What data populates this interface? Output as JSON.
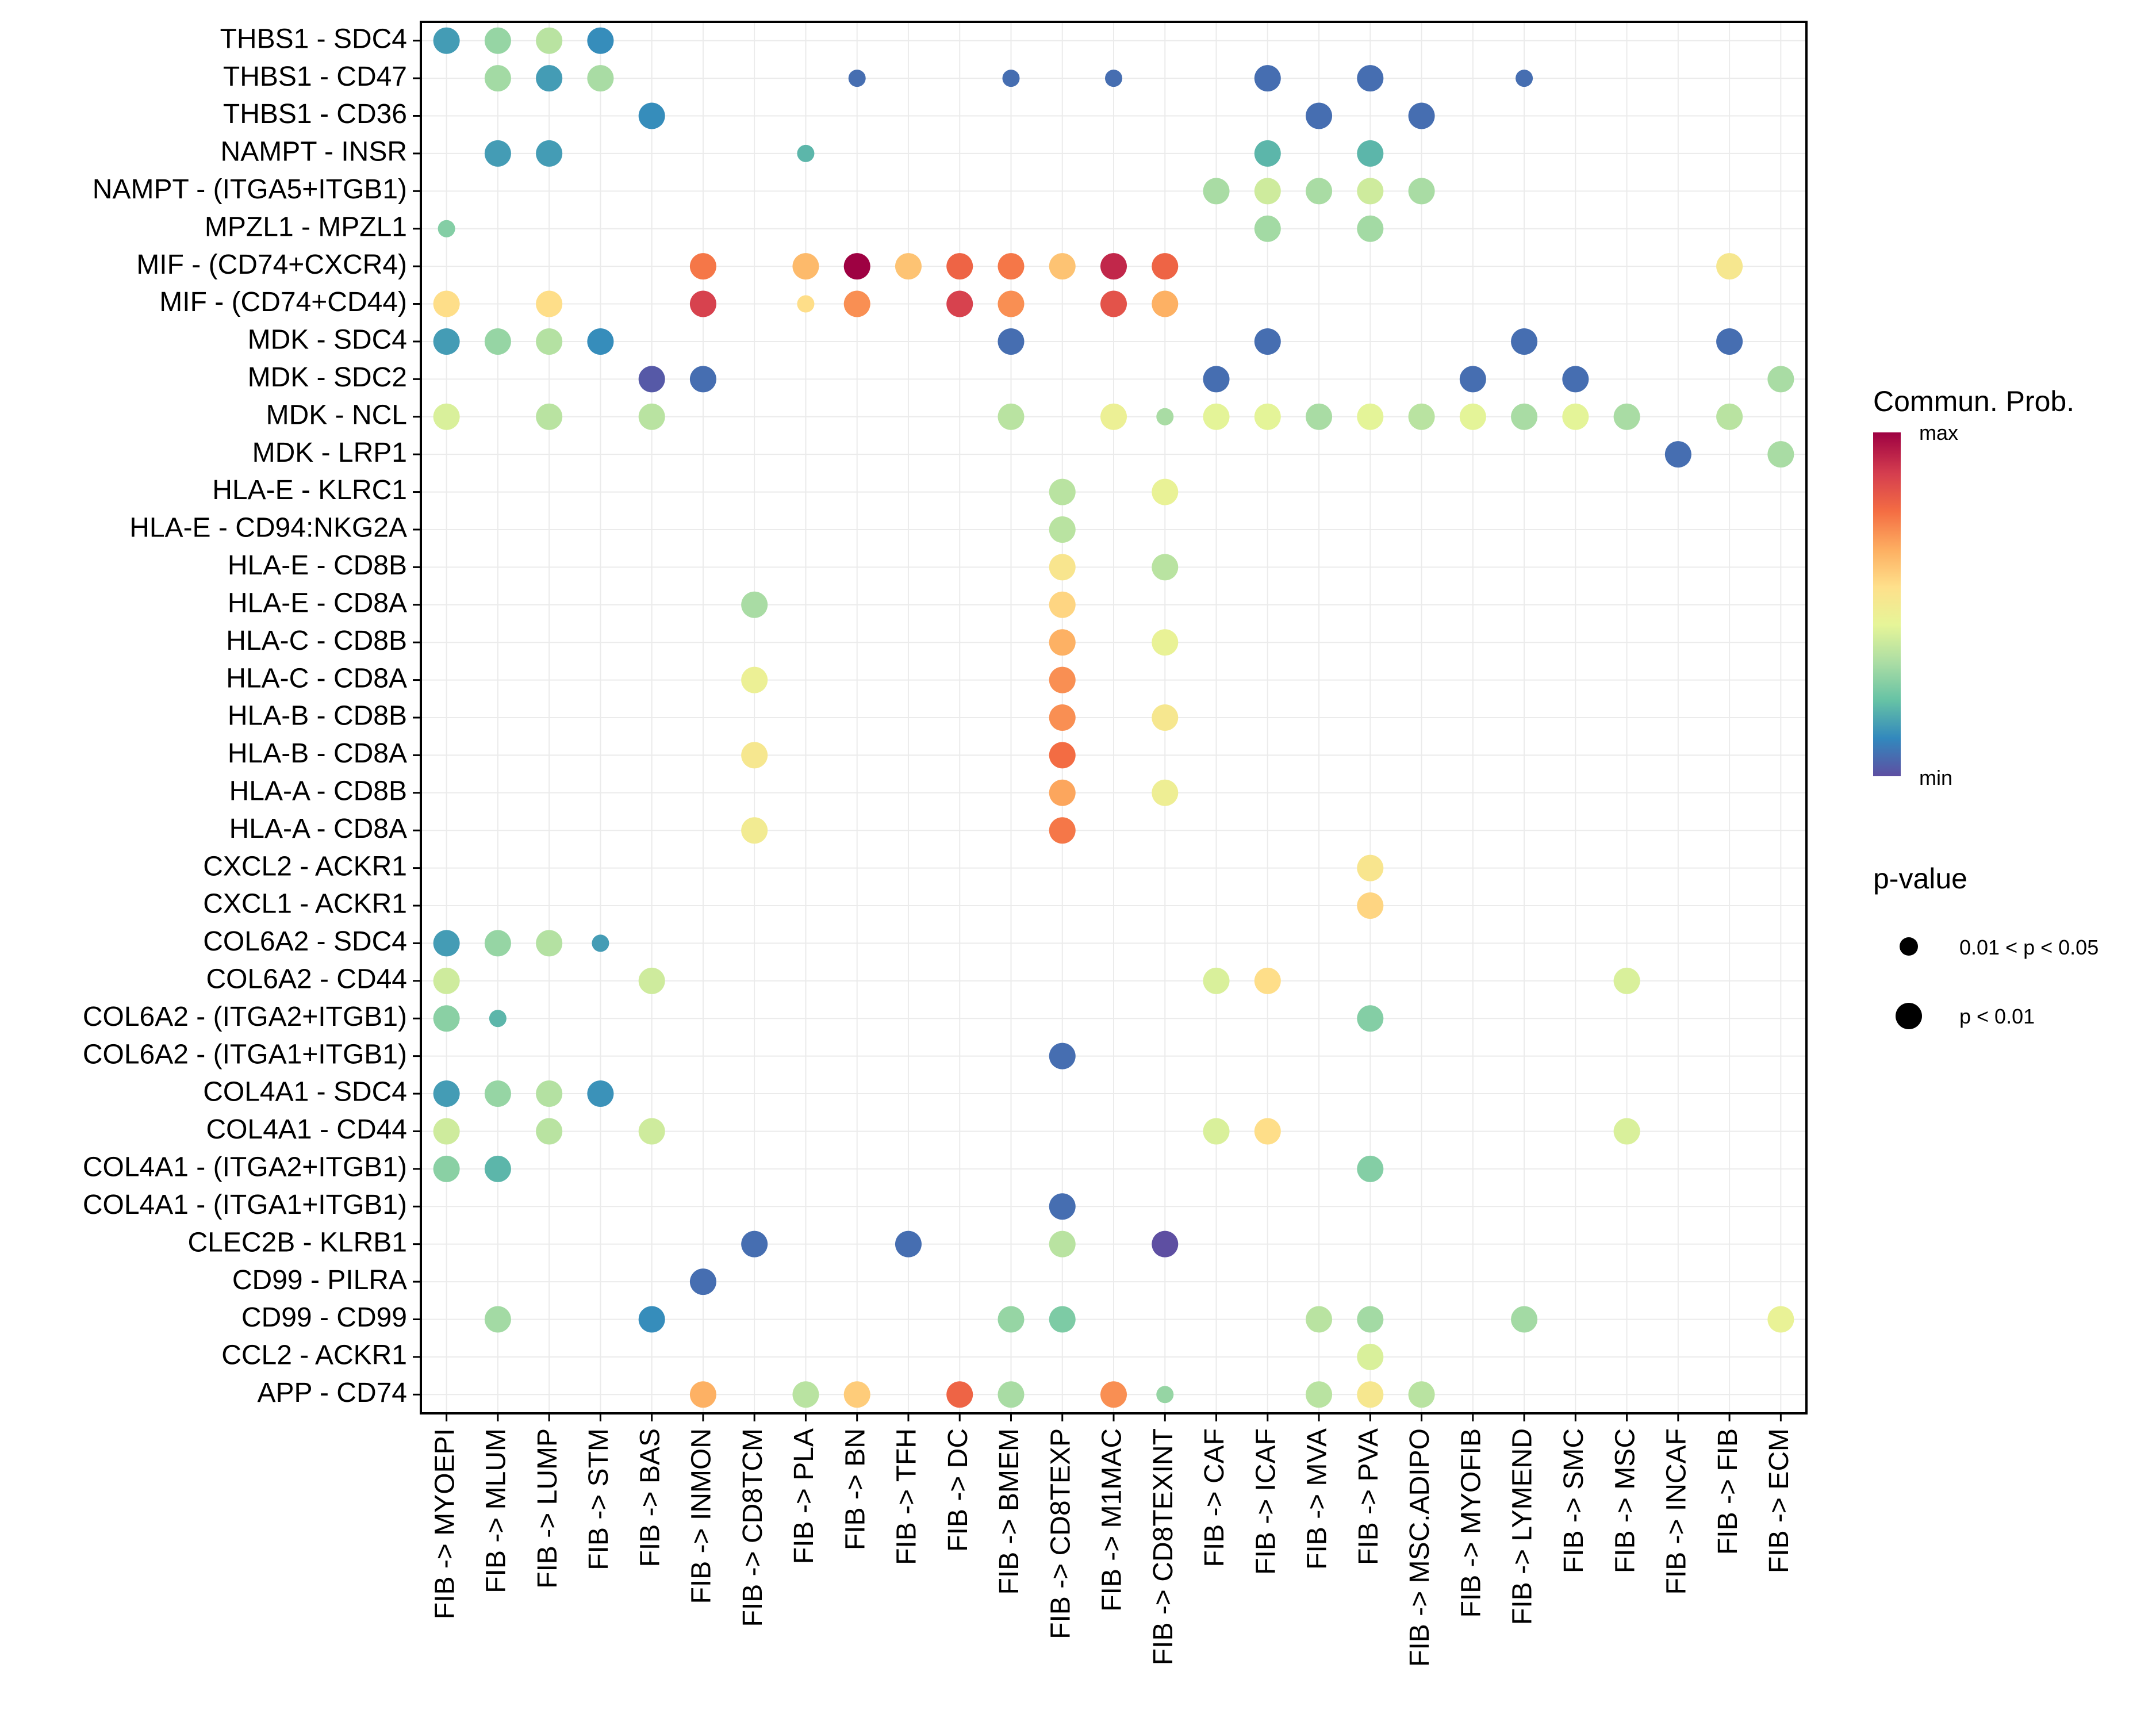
{
  "chart_data": {
    "type": "scatter",
    "subtype": "dot-heatmap",
    "title": "",
    "xlabel": "",
    "ylabel": "",
    "grid": true,
    "rows": [
      "THBS1 - SDC4",
      "THBS1 - CD47",
      "THBS1 - CD36",
      "NAMPT - INSR",
      "NAMPT - (ITGA5+ITGB1)",
      "MPZL1 - MPZL1",
      "MIF - (CD74+CXCR4)",
      "MIF - (CD74+CD44)",
      "MDK - SDC4",
      "MDK - SDC2",
      "MDK - NCL",
      "MDK - LRP1",
      "HLA-E - KLRC1",
      "HLA-E - CD94:NKG2A",
      "HLA-E - CD8B",
      "HLA-E - CD8A",
      "HLA-C - CD8B",
      "HLA-C - CD8A",
      "HLA-B - CD8B",
      "HLA-B - CD8A",
      "HLA-A - CD8B",
      "HLA-A - CD8A",
      "CXCL2 - ACKR1",
      "CXCL1 - ACKR1",
      "COL6A2 - SDC4",
      "COL6A2 - CD44",
      "COL6A2 - (ITGA2+ITGB1)",
      "COL6A2 - (ITGA1+ITGB1)",
      "COL4A1 - SDC4",
      "COL4A1 - CD44",
      "COL4A1 - (ITGA2+ITGB1)",
      "COL4A1 - (ITGA1+ITGB1)",
      "CLEC2B - KLRB1",
      "CD99 - PILRA",
      "CD99 - CD99",
      "CCL2 - ACKR1",
      "APP - CD74"
    ],
    "columns": [
      "FIB -> MYOEPI",
      "FIB -> MLUM",
      "FIB -> LUMP",
      "FIB -> STM",
      "FIB -> BAS",
      "FIB -> INMON",
      "FIB -> CD8TCM",
      "FIB -> PLA",
      "FIB -> BN",
      "FIB -> TFH",
      "FIB -> DC",
      "FIB -> BMEM",
      "FIB -> CD8TEXP",
      "FIB -> M1MAC",
      "FIB -> CD8TEXINT",
      "FIB -> CAF",
      "FIB -> ICAF",
      "FIB -> MVA",
      "FIB -> PVA",
      "FIB -> MSC.ADIPO",
      "FIB -> MYOFIB",
      "FIB -> LYMEND",
      "FIB -> SMC",
      "FIB -> MSC",
      "FIB -> INCAF",
      "FIB -> FIB",
      "FIB -> ECM"
    ],
    "value_scale": {
      "title": "Commun. Prob.",
      "min_label": "min",
      "max_label": "max",
      "note": "values are relative probability in [0,1]"
    },
    "pvalue_legend": {
      "title": "p-value",
      "levels": [
        {
          "label": "0.01 < p < 0.05",
          "size": "small"
        },
        {
          "label": "p < 0.01",
          "size": "large"
        }
      ]
    },
    "points": [
      {
        "r": 0,
        "c": 0,
        "v": 0.15,
        "p": "large"
      },
      {
        "r": 0,
        "c": 1,
        "v": 0.3,
        "p": "large"
      },
      {
        "r": 0,
        "c": 2,
        "v": 0.36,
        "p": "large"
      },
      {
        "r": 0,
        "c": 3,
        "v": 0.12,
        "p": "large"
      },
      {
        "r": 1,
        "c": 1,
        "v": 0.32,
        "p": "large"
      },
      {
        "r": 1,
        "c": 2,
        "v": 0.15,
        "p": "large"
      },
      {
        "r": 1,
        "c": 3,
        "v": 0.33,
        "p": "large"
      },
      {
        "r": 1,
        "c": 8,
        "v": 0.06,
        "p": "small"
      },
      {
        "r": 1,
        "c": 11,
        "v": 0.06,
        "p": "small"
      },
      {
        "r": 1,
        "c": 13,
        "v": 0.06,
        "p": "small"
      },
      {
        "r": 1,
        "c": 16,
        "v": 0.06,
        "p": "large"
      },
      {
        "r": 1,
        "c": 18,
        "v": 0.06,
        "p": "large"
      },
      {
        "r": 1,
        "c": 21,
        "v": 0.06,
        "p": "small"
      },
      {
        "r": 2,
        "c": 4,
        "v": 0.12,
        "p": "large"
      },
      {
        "r": 2,
        "c": 17,
        "v": 0.06,
        "p": "large"
      },
      {
        "r": 2,
        "c": 19,
        "v": 0.06,
        "p": "large"
      },
      {
        "r": 3,
        "c": 1,
        "v": 0.15,
        "p": "large"
      },
      {
        "r": 3,
        "c": 2,
        "v": 0.15,
        "p": "large"
      },
      {
        "r": 3,
        "c": 7,
        "v": 0.2,
        "p": "small"
      },
      {
        "r": 3,
        "c": 16,
        "v": 0.2,
        "p": "large"
      },
      {
        "r": 3,
        "c": 18,
        "v": 0.2,
        "p": "large"
      },
      {
        "r": 4,
        "c": 15,
        "v": 0.33,
        "p": "large"
      },
      {
        "r": 4,
        "c": 16,
        "v": 0.4,
        "p": "large"
      },
      {
        "r": 4,
        "c": 17,
        "v": 0.33,
        "p": "large"
      },
      {
        "r": 4,
        "c": 18,
        "v": 0.4,
        "p": "large"
      },
      {
        "r": 4,
        "c": 19,
        "v": 0.33,
        "p": "large"
      },
      {
        "r": 5,
        "c": 0,
        "v": 0.27,
        "p": "small"
      },
      {
        "r": 5,
        "c": 16,
        "v": 0.32,
        "p": "large"
      },
      {
        "r": 5,
        "c": 18,
        "v": 0.32,
        "p": "large"
      },
      {
        "r": 6,
        "c": 5,
        "v": 0.76,
        "p": "large"
      },
      {
        "r": 6,
        "c": 7,
        "v": 0.64,
        "p": "large"
      },
      {
        "r": 6,
        "c": 8,
        "v": 1.0,
        "p": "large"
      },
      {
        "r": 6,
        "c": 9,
        "v": 0.62,
        "p": "large"
      },
      {
        "r": 6,
        "c": 10,
        "v": 0.8,
        "p": "large"
      },
      {
        "r": 6,
        "c": 11,
        "v": 0.76,
        "p": "large"
      },
      {
        "r": 6,
        "c": 12,
        "v": 0.62,
        "p": "large"
      },
      {
        "r": 6,
        "c": 13,
        "v": 0.93,
        "p": "large"
      },
      {
        "r": 6,
        "c": 14,
        "v": 0.8,
        "p": "large"
      },
      {
        "r": 6,
        "c": 25,
        "v": 0.52,
        "p": "large"
      },
      {
        "r": 7,
        "c": 0,
        "v": 0.56,
        "p": "large"
      },
      {
        "r": 7,
        "c": 2,
        "v": 0.56,
        "p": "large"
      },
      {
        "r": 7,
        "c": 5,
        "v": 0.88,
        "p": "large"
      },
      {
        "r": 7,
        "c": 7,
        "v": 0.56,
        "p": "small"
      },
      {
        "r": 7,
        "c": 8,
        "v": 0.72,
        "p": "large"
      },
      {
        "r": 7,
        "c": 10,
        "v": 0.88,
        "p": "large"
      },
      {
        "r": 7,
        "c": 11,
        "v": 0.72,
        "p": "large"
      },
      {
        "r": 7,
        "c": 13,
        "v": 0.84,
        "p": "large"
      },
      {
        "r": 7,
        "c": 14,
        "v": 0.66,
        "p": "large"
      },
      {
        "r": 8,
        "c": 0,
        "v": 0.15,
        "p": "large"
      },
      {
        "r": 8,
        "c": 1,
        "v": 0.3,
        "p": "large"
      },
      {
        "r": 8,
        "c": 2,
        "v": 0.35,
        "p": "large"
      },
      {
        "r": 8,
        "c": 3,
        "v": 0.12,
        "p": "large"
      },
      {
        "r": 8,
        "c": 11,
        "v": 0.06,
        "p": "large"
      },
      {
        "r": 8,
        "c": 16,
        "v": 0.06,
        "p": "large"
      },
      {
        "r": 8,
        "c": 21,
        "v": 0.06,
        "p": "large"
      },
      {
        "r": 8,
        "c": 25,
        "v": 0.06,
        "p": "large"
      },
      {
        "r": 9,
        "c": 4,
        "v": 0.02,
        "p": "large"
      },
      {
        "r": 9,
        "c": 5,
        "v": 0.06,
        "p": "large"
      },
      {
        "r": 9,
        "c": 15,
        "v": 0.06,
        "p": "large"
      },
      {
        "r": 9,
        "c": 20,
        "v": 0.06,
        "p": "large"
      },
      {
        "r": 9,
        "c": 22,
        "v": 0.06,
        "p": "large"
      },
      {
        "r": 9,
        "c": 26,
        "v": 0.33,
        "p": "large"
      },
      {
        "r": 10,
        "c": 0,
        "v": 0.42,
        "p": "large"
      },
      {
        "r": 10,
        "c": 2,
        "v": 0.36,
        "p": "large"
      },
      {
        "r": 10,
        "c": 4,
        "v": 0.36,
        "p": "large"
      },
      {
        "r": 10,
        "c": 11,
        "v": 0.36,
        "p": "large"
      },
      {
        "r": 10,
        "c": 13,
        "v": 0.47,
        "p": "large"
      },
      {
        "r": 10,
        "c": 14,
        "v": 0.33,
        "p": "small"
      },
      {
        "r": 10,
        "c": 15,
        "v": 0.44,
        "p": "large"
      },
      {
        "r": 10,
        "c": 16,
        "v": 0.44,
        "p": "large"
      },
      {
        "r": 10,
        "c": 17,
        "v": 0.33,
        "p": "large"
      },
      {
        "r": 10,
        "c": 18,
        "v": 0.44,
        "p": "large"
      },
      {
        "r": 10,
        "c": 19,
        "v": 0.36,
        "p": "large"
      },
      {
        "r": 10,
        "c": 20,
        "v": 0.44,
        "p": "large"
      },
      {
        "r": 10,
        "c": 21,
        "v": 0.33,
        "p": "large"
      },
      {
        "r": 10,
        "c": 22,
        "v": 0.44,
        "p": "large"
      },
      {
        "r": 10,
        "c": 23,
        "v": 0.33,
        "p": "large"
      },
      {
        "r": 10,
        "c": 25,
        "v": 0.36,
        "p": "large"
      },
      {
        "r": 11,
        "c": 24,
        "v": 0.06,
        "p": "large"
      },
      {
        "r": 11,
        "c": 26,
        "v": 0.33,
        "p": "large"
      },
      {
        "r": 12,
        "c": 12,
        "v": 0.36,
        "p": "large"
      },
      {
        "r": 12,
        "c": 14,
        "v": 0.46,
        "p": "large"
      },
      {
        "r": 13,
        "c": 12,
        "v": 0.36,
        "p": "large"
      },
      {
        "r": 14,
        "c": 12,
        "v": 0.53,
        "p": "large"
      },
      {
        "r": 14,
        "c": 14,
        "v": 0.36,
        "p": "large"
      },
      {
        "r": 15,
        "c": 6,
        "v": 0.33,
        "p": "large"
      },
      {
        "r": 15,
        "c": 12,
        "v": 0.58,
        "p": "large"
      },
      {
        "r": 16,
        "c": 12,
        "v": 0.66,
        "p": "large"
      },
      {
        "r": 16,
        "c": 14,
        "v": 0.46,
        "p": "large"
      },
      {
        "r": 17,
        "c": 6,
        "v": 0.47,
        "p": "large"
      },
      {
        "r": 17,
        "c": 12,
        "v": 0.72,
        "p": "large"
      },
      {
        "r": 18,
        "c": 12,
        "v": 0.72,
        "p": "large"
      },
      {
        "r": 18,
        "c": 14,
        "v": 0.52,
        "p": "large"
      },
      {
        "r": 19,
        "c": 6,
        "v": 0.52,
        "p": "large"
      },
      {
        "r": 19,
        "c": 12,
        "v": 0.78,
        "p": "large"
      },
      {
        "r": 20,
        "c": 12,
        "v": 0.68,
        "p": "large"
      },
      {
        "r": 20,
        "c": 14,
        "v": 0.48,
        "p": "large"
      },
      {
        "r": 21,
        "c": 6,
        "v": 0.5,
        "p": "large"
      },
      {
        "r": 21,
        "c": 12,
        "v": 0.76,
        "p": "large"
      },
      {
        "r": 22,
        "c": 18,
        "v": 0.53,
        "p": "large"
      },
      {
        "r": 23,
        "c": 18,
        "v": 0.58,
        "p": "large"
      },
      {
        "r": 24,
        "c": 0,
        "v": 0.15,
        "p": "large"
      },
      {
        "r": 24,
        "c": 1,
        "v": 0.3,
        "p": "large"
      },
      {
        "r": 24,
        "c": 2,
        "v": 0.35,
        "p": "large"
      },
      {
        "r": 24,
        "c": 3,
        "v": 0.15,
        "p": "small"
      },
      {
        "r": 25,
        "c": 0,
        "v": 0.4,
        "p": "large"
      },
      {
        "r": 25,
        "c": 4,
        "v": 0.4,
        "p": "large"
      },
      {
        "r": 25,
        "c": 15,
        "v": 0.42,
        "p": "large"
      },
      {
        "r": 25,
        "c": 16,
        "v": 0.56,
        "p": "large"
      },
      {
        "r": 25,
        "c": 23,
        "v": 0.42,
        "p": "large"
      },
      {
        "r": 26,
        "c": 0,
        "v": 0.28,
        "p": "large"
      },
      {
        "r": 26,
        "c": 1,
        "v": 0.2,
        "p": "small"
      },
      {
        "r": 26,
        "c": 18,
        "v": 0.27,
        "p": "large"
      },
      {
        "r": 27,
        "c": 12,
        "v": 0.06,
        "p": "large"
      },
      {
        "r": 28,
        "c": 0,
        "v": 0.15,
        "p": "large"
      },
      {
        "r": 28,
        "c": 1,
        "v": 0.3,
        "p": "large"
      },
      {
        "r": 28,
        "c": 2,
        "v": 0.35,
        "p": "large"
      },
      {
        "r": 28,
        "c": 3,
        "v": 0.13,
        "p": "large"
      },
      {
        "r": 29,
        "c": 0,
        "v": 0.4,
        "p": "large"
      },
      {
        "r": 29,
        "c": 2,
        "v": 0.36,
        "p": "large"
      },
      {
        "r": 29,
        "c": 4,
        "v": 0.4,
        "p": "large"
      },
      {
        "r": 29,
        "c": 15,
        "v": 0.42,
        "p": "large"
      },
      {
        "r": 29,
        "c": 16,
        "v": 0.56,
        "p": "large"
      },
      {
        "r": 29,
        "c": 23,
        "v": 0.42,
        "p": "large"
      },
      {
        "r": 30,
        "c": 0,
        "v": 0.28,
        "p": "large"
      },
      {
        "r": 30,
        "c": 1,
        "v": 0.2,
        "p": "large"
      },
      {
        "r": 30,
        "c": 18,
        "v": 0.27,
        "p": "large"
      },
      {
        "r": 31,
        "c": 12,
        "v": 0.06,
        "p": "large"
      },
      {
        "r": 32,
        "c": 6,
        "v": 0.06,
        "p": "large"
      },
      {
        "r": 32,
        "c": 9,
        "v": 0.06,
        "p": "large"
      },
      {
        "r": 32,
        "c": 12,
        "v": 0.36,
        "p": "large"
      },
      {
        "r": 32,
        "c": 14,
        "v": 0.0,
        "p": "large"
      },
      {
        "r": 33,
        "c": 5,
        "v": 0.06,
        "p": "large"
      },
      {
        "r": 34,
        "c": 1,
        "v": 0.32,
        "p": "large"
      },
      {
        "r": 34,
        "c": 4,
        "v": 0.12,
        "p": "large"
      },
      {
        "r": 34,
        "c": 11,
        "v": 0.3,
        "p": "large"
      },
      {
        "r": 34,
        "c": 12,
        "v": 0.26,
        "p": "large"
      },
      {
        "r": 34,
        "c": 17,
        "v": 0.36,
        "p": "large"
      },
      {
        "r": 34,
        "c": 18,
        "v": 0.32,
        "p": "large"
      },
      {
        "r": 34,
        "c": 21,
        "v": 0.32,
        "p": "large"
      },
      {
        "r": 34,
        "c": 26,
        "v": 0.46,
        "p": "large"
      },
      {
        "r": 35,
        "c": 18,
        "v": 0.42,
        "p": "large"
      },
      {
        "r": 36,
        "c": 5,
        "v": 0.66,
        "p": "large"
      },
      {
        "r": 36,
        "c": 7,
        "v": 0.36,
        "p": "large"
      },
      {
        "r": 36,
        "c": 8,
        "v": 0.6,
        "p": "large"
      },
      {
        "r": 36,
        "c": 10,
        "v": 0.8,
        "p": "large"
      },
      {
        "r": 36,
        "c": 11,
        "v": 0.33,
        "p": "large"
      },
      {
        "r": 36,
        "c": 13,
        "v": 0.72,
        "p": "large"
      },
      {
        "r": 36,
        "c": 14,
        "v": 0.3,
        "p": "small"
      },
      {
        "r": 36,
        "c": 17,
        "v": 0.36,
        "p": "large"
      },
      {
        "r": 36,
        "c": 18,
        "v": 0.52,
        "p": "large"
      },
      {
        "r": 36,
        "c": 19,
        "v": 0.36,
        "p": "large"
      }
    ]
  },
  "palette": [
    "#5E4FA2",
    "#3288BD",
    "#66C2A5",
    "#ABDDA4",
    "#E6F598",
    "#FEE08B",
    "#FDAE61",
    "#F46D43",
    "#D53E4F",
    "#9E0142"
  ]
}
